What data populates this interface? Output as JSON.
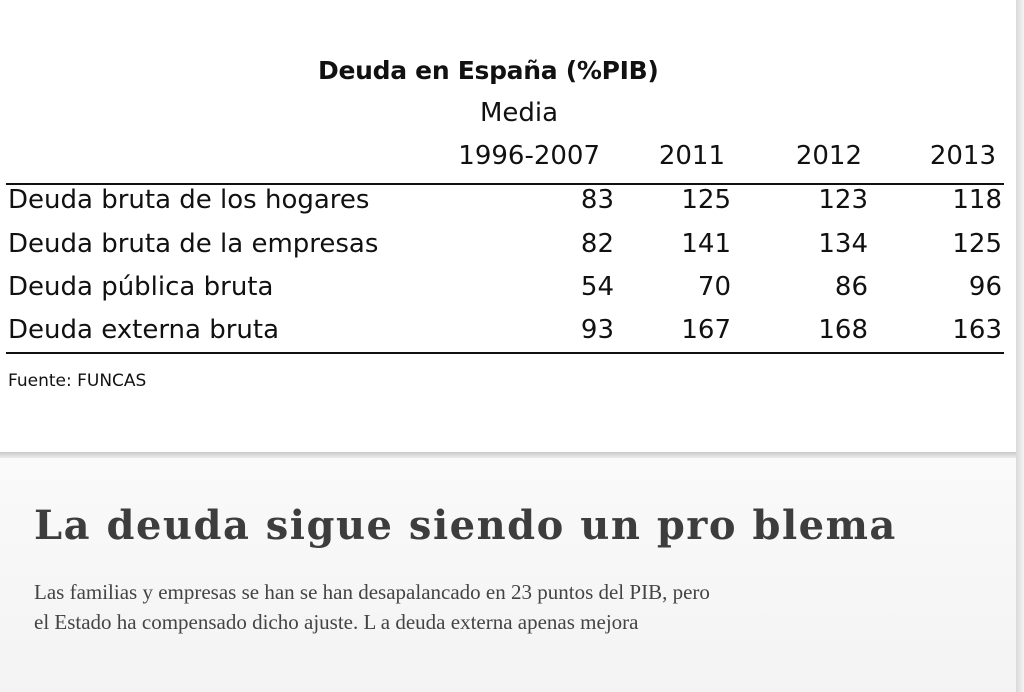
{
  "table": {
    "title": "Deuda en España  (%PIB)",
    "header_top": "Media",
    "columns": [
      "1996-2007",
      "2011",
      "2012",
      "2013"
    ],
    "rows": [
      {
        "label": "Deuda bruta de los hogares",
        "values": [
          "83",
          "125",
          "123",
          "118"
        ]
      },
      {
        "label": "Deuda bruta de la empresas",
        "values": [
          "82",
          "141",
          "134",
          "125"
        ]
      },
      {
        "label": "Deuda pública bruta",
        "values": [
          "54",
          "70",
          "86",
          "96"
        ]
      },
      {
        "label": "Deuda externa bruta",
        "values": [
          "93",
          "167",
          "168",
          "163"
        ]
      }
    ],
    "source": "Fuente: FUNCAS"
  },
  "article": {
    "headline": "La deuda  sigue siendo un pro blema",
    "line1": "Las familias y empresas se han se han desapalancado en 23 puntos del PIB, pero",
    "line2": "el Estado ha compensado dicho ajuste. L a deuda externa apenas mejora"
  }
}
